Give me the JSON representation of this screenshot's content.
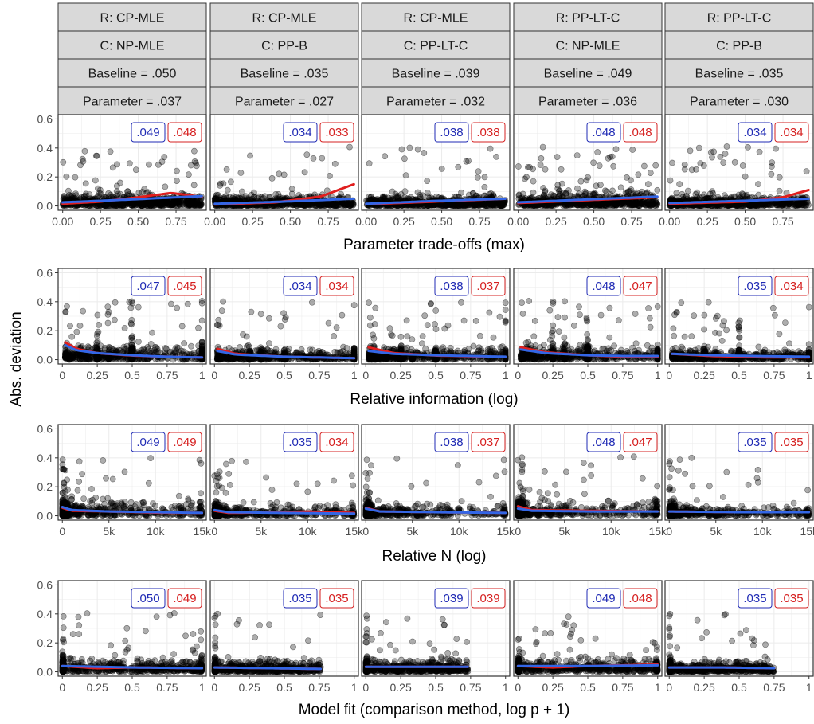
{
  "chart_data": {
    "type": "scatter",
    "y_axis_title": "Abs. deviation",
    "y_ticks": [
      "0.0",
      "0.2",
      "0.4",
      "0.6"
    ],
    "ylim": [
      0,
      0.6
    ],
    "colors": {
      "blue_line": "#3366e6",
      "red_line": "#e01e1e",
      "blue_label": "#1f2ab4",
      "red_label": "#d62020",
      "points": "#000000",
      "strip_fill": "#d9d9d9",
      "panel_border": "#333333",
      "grid": "#ebebeb"
    },
    "columns": [
      {
        "r": "R: CP-MLE",
        "c": "C: NP-MLE",
        "baseline": "Baseline = .050",
        "parameter": "Parameter = .037"
      },
      {
        "r": "R: CP-MLE",
        "c": "C: PP-B",
        "baseline": "Baseline = .035",
        "parameter": "Parameter = .027"
      },
      {
        "r": "R: CP-MLE",
        "c": "C: PP-LT-C",
        "baseline": "Baseline = .039",
        "parameter": "Parameter = .032"
      },
      {
        "r": "R: PP-LT-C",
        "c": "C: NP-MLE",
        "baseline": "Baseline = .049",
        "parameter": "Parameter = .036"
      },
      {
        "r": "R: PP-LT-C",
        "c": "C: PP-B",
        "baseline": "Baseline = .035",
        "parameter": "Parameter = .030"
      }
    ],
    "rows": [
      {
        "xlabel": "Parameter trade-offs (max)",
        "xlim": [
          -0.03,
          0.95
        ],
        "x_ticks": [
          {
            "v": 0,
            "t": "0.00"
          },
          {
            "v": 0.25,
            "t": "0.25"
          },
          {
            "v": 0.5,
            "t": "0.50"
          },
          {
            "v": 0.75,
            "t": "0.75"
          }
        ],
        "panels": [
          {
            "labels": [
              ".049",
              ".048"
            ],
            "xmax": 0.92,
            "dist": "uniform",
            "spread": 0.045,
            "blue": [
              [
                0,
                0.025
              ],
              [
                0.45,
                0.045
              ],
              [
                0.92,
                0.068
              ]
            ],
            "red": [
              [
                0,
                0.015
              ],
              [
                0.25,
                0.03
              ],
              [
                0.5,
                0.06
              ],
              [
                0.72,
                0.09
              ],
              [
                0.92,
                0.062
              ]
            ]
          },
          {
            "labels": [
              ".034",
              ".033"
            ],
            "xmax": 0.92,
            "dist": "skew",
            "spread": 0.035,
            "blue": [
              [
                0,
                0.015
              ],
              [
                0.45,
                0.03
              ],
              [
                0.92,
                0.05
              ]
            ],
            "red": [
              [
                0,
                0.01
              ],
              [
                0.4,
                0.025
              ],
              [
                0.7,
                0.065
              ],
              [
                0.92,
                0.15
              ]
            ]
          },
          {
            "labels": [
              ".038",
              ".038"
            ],
            "xmax": 0.92,
            "dist": "uniform",
            "spread": 0.035,
            "blue": [
              [
                0,
                0.015
              ],
              [
                0.45,
                0.035
              ],
              [
                0.92,
                0.05
              ]
            ],
            "red": [
              [
                0,
                0.012
              ],
              [
                0.45,
                0.03
              ],
              [
                0.92,
                0.05
              ]
            ]
          },
          {
            "labels": [
              ".048",
              ".048"
            ],
            "xmax": 0.92,
            "dist": "uniform",
            "spread": 0.045,
            "blue": [
              [
                0,
                0.025
              ],
              [
                0.45,
                0.045
              ],
              [
                0.92,
                0.065
              ]
            ],
            "red": [
              [
                0,
                0.02
              ],
              [
                0.45,
                0.04
              ],
              [
                0.92,
                0.06
              ]
            ]
          },
          {
            "labels": [
              ".034",
              ".034"
            ],
            "xmax": 0.92,
            "dist": "skew",
            "spread": 0.035,
            "blue": [
              [
                0,
                0.02
              ],
              [
                0.45,
                0.035
              ],
              [
                0.92,
                0.05
              ]
            ],
            "red": [
              [
                0,
                0.015
              ],
              [
                0.5,
                0.03
              ],
              [
                0.75,
                0.06
              ],
              [
                0.92,
                0.11
              ]
            ]
          }
        ]
      },
      {
        "xlabel": "Relative information (log)",
        "xlim": [
          -0.03,
          1.03
        ],
        "x_ticks": [
          {
            "v": 0,
            "t": "0"
          },
          {
            "v": 0.25,
            "t": "0.25"
          },
          {
            "v": 0.5,
            "t": "0.5"
          },
          {
            "v": 0.75,
            "t": "0.75"
          },
          {
            "v": 1,
            "t": "1"
          }
        ],
        "panels": [
          {
            "labels": [
              ".047",
              ".045"
            ],
            "xmax": 1,
            "dist": "logrel",
            "spread": 0.05,
            "blue": [
              [
                0.02,
                0.1
              ],
              [
                0.1,
                0.065
              ],
              [
                0.25,
                0.045
              ],
              [
                0.5,
                0.03
              ],
              [
                0.75,
                0.02
              ],
              [
                1,
                0.015
              ]
            ],
            "red": [
              [
                0.02,
                0.12
              ],
              [
                0.1,
                0.075
              ],
              [
                0.25,
                0.045
              ],
              [
                0.5,
                0.028
              ],
              [
                0.75,
                0.02
              ],
              [
                1,
                0.015
              ]
            ]
          },
          {
            "labels": [
              ".034",
              ".034"
            ],
            "xmax": 1,
            "dist": "logrel",
            "spread": 0.035,
            "blue": [
              [
                0.02,
                0.06
              ],
              [
                0.15,
                0.035
              ],
              [
                0.5,
                0.02
              ],
              [
                1,
                0.01
              ]
            ],
            "red": [
              [
                0.02,
                0.075
              ],
              [
                0.15,
                0.04
              ],
              [
                0.5,
                0.02
              ],
              [
                1,
                0.01
              ]
            ]
          },
          {
            "labels": [
              ".038",
              ".037"
            ],
            "xmax": 1,
            "dist": "logrel",
            "spread": 0.04,
            "blue": [
              [
                0.02,
                0.06
              ],
              [
                0.2,
                0.04
              ],
              [
                0.5,
                0.03
              ],
              [
                1,
                0.02
              ]
            ],
            "red": [
              [
                0.02,
                0.085
              ],
              [
                0.2,
                0.045
              ],
              [
                0.5,
                0.028
              ],
              [
                1,
                0.018
              ]
            ]
          },
          {
            "labels": [
              ".048",
              ".047"
            ],
            "xmax": 1,
            "dist": "logrel",
            "spread": 0.05,
            "blue": [
              [
                0.02,
                0.07
              ],
              [
                0.2,
                0.045
              ],
              [
                0.5,
                0.03
              ],
              [
                0.75,
                0.025
              ],
              [
                1,
                0.025
              ]
            ],
            "red": [
              [
                0.02,
                0.085
              ],
              [
                0.2,
                0.05
              ],
              [
                0.5,
                0.03
              ],
              [
                0.75,
                0.02
              ],
              [
                1,
                0.02
              ]
            ]
          },
          {
            "labels": [
              ".035",
              ".034"
            ],
            "xmax": 1,
            "dist": "logrel",
            "spread": 0.035,
            "blue": [
              [
                0.02,
                0.04
              ],
              [
                0.3,
                0.03
              ],
              [
                0.6,
                0.025
              ],
              [
                1,
                0.02
              ]
            ],
            "red": [
              [
                0.02,
                0.04
              ],
              [
                0.3,
                0.025
              ],
              [
                0.7,
                0.015
              ],
              [
                1,
                0.015
              ]
            ]
          }
        ]
      },
      {
        "xlabel": "Relative N (log)",
        "xlim": [
          -450,
          15450
        ],
        "x_ticks": [
          {
            "v": 0,
            "t": "0"
          },
          {
            "v": 5000,
            "t": "5k"
          },
          {
            "v": 10000,
            "t": "10k"
          },
          {
            "v": 15000,
            "t": "15k"
          }
        ],
        "panels": [
          {
            "labels": [
              ".049",
              ".049"
            ],
            "xmax": 15000,
            "dist": "relN",
            "spread": 0.05,
            "blue": [
              [
                0,
                0.06
              ],
              [
                1000,
                0.04
              ],
              [
                5000,
                0.03
              ],
              [
                10000,
                0.025
              ],
              [
                15000,
                0.02
              ]
            ],
            "red": [
              [
                0,
                0.055
              ],
              [
                1000,
                0.035
              ],
              [
                5000,
                0.03
              ],
              [
                10000,
                0.022
              ],
              [
                15000,
                0.02
              ]
            ]
          },
          {
            "labels": [
              ".035",
              ".034"
            ],
            "xmax": 15000,
            "dist": "relN",
            "spread": 0.035,
            "blue": [
              [
                0,
                0.04
              ],
              [
                1500,
                0.025
              ],
              [
                7500,
                0.02
              ],
              [
                15000,
                0.015
              ]
            ],
            "red": [
              [
                0,
                0.035
              ],
              [
                1500,
                0.02
              ],
              [
                7000,
                0.025
              ],
              [
                10000,
                0.03
              ],
              [
                15000,
                0.02
              ]
            ]
          },
          {
            "labels": [
              ".038",
              ".037"
            ],
            "xmax": 15000,
            "dist": "relN",
            "spread": 0.04,
            "blue": [
              [
                0,
                0.05
              ],
              [
                1500,
                0.03
              ],
              [
                7500,
                0.025
              ],
              [
                15000,
                0.02
              ]
            ],
            "red": [
              [
                0,
                0.055
              ],
              [
                1500,
                0.03
              ],
              [
                7500,
                0.025
              ],
              [
                15000,
                0.02
              ]
            ]
          },
          {
            "labels": [
              ".048",
              ".047"
            ],
            "xmax": 15000,
            "dist": "relN",
            "spread": 0.05,
            "blue": [
              [
                0,
                0.05
              ],
              [
                1500,
                0.035
              ],
              [
                7500,
                0.03
              ],
              [
                15000,
                0.03
              ]
            ],
            "red": [
              [
                0,
                0.065
              ],
              [
                1500,
                0.04
              ],
              [
                7500,
                0.035
              ],
              [
                15000,
                0.03
              ]
            ]
          },
          {
            "labels": [
              ".035",
              ".035"
            ],
            "xmax": 15000,
            "dist": "relN",
            "spread": 0.035,
            "blue": [
              [
                0,
                0.03
              ],
              [
                7500,
                0.025
              ],
              [
                15000,
                0.025
              ]
            ],
            "red": [
              [
                0,
                0.03
              ],
              [
                7500,
                0.025
              ],
              [
                15000,
                0.025
              ]
            ]
          }
        ]
      },
      {
        "xlabel": "Model fit (comparison method, log p + 1)",
        "xlim": [
          -0.03,
          1.03
        ],
        "x_ticks": [
          {
            "v": 0,
            "t": "0"
          },
          {
            "v": 0.25,
            "t": "0.25"
          },
          {
            "v": 0.5,
            "t": "0.5"
          },
          {
            "v": 0.75,
            "t": "0.75"
          },
          {
            "v": 1,
            "t": "1"
          }
        ],
        "panels": [
          {
            "labels": [
              ".050",
              ".049"
            ],
            "xmax": 1,
            "dist": "fit",
            "spread": 0.045,
            "blue": [
              [
                0,
                0.04
              ],
              [
                0.5,
                0.03
              ],
              [
                1,
                0.025
              ]
            ],
            "red": [
              [
                0,
                0.04
              ],
              [
                0.25,
                0.025
              ],
              [
                0.5,
                0.03
              ],
              [
                1,
                0.025
              ]
            ]
          },
          {
            "labels": [
              ".035",
              ".035"
            ],
            "xmax": 0.76,
            "dist": "fit",
            "spread": 0.035,
            "blue": [
              [
                0,
                0.03
              ],
              [
                0.4,
                0.025
              ],
              [
                0.76,
                0.02
              ]
            ],
            "red": [
              [
                0,
                0.03
              ],
              [
                0.4,
                0.025
              ],
              [
                0.76,
                0.02
              ]
            ]
          },
          {
            "labels": [
              ".039",
              ".039"
            ],
            "xmax": 0.73,
            "dist": "fit",
            "spread": 0.04,
            "blue": [
              [
                0,
                0.035
              ],
              [
                0.36,
                0.035
              ],
              [
                0.73,
                0.035
              ]
            ],
            "red": [
              [
                0,
                0.035
              ],
              [
                0.36,
                0.035
              ],
              [
                0.73,
                0.035
              ]
            ]
          },
          {
            "labels": [
              ".049",
              ".048"
            ],
            "xmax": 1,
            "dist": "fit",
            "spread": 0.045,
            "blue": [
              [
                0,
                0.04
              ],
              [
                0.5,
                0.04
              ],
              [
                1,
                0.045
              ]
            ],
            "red": [
              [
                0,
                0.04
              ],
              [
                0.25,
                0.03
              ],
              [
                0.5,
                0.04
              ],
              [
                1,
                0.05
              ]
            ]
          },
          {
            "labels": [
              ".035",
              ".035"
            ],
            "xmax": 0.75,
            "dist": "fit",
            "spread": 0.035,
            "blue": [
              [
                0,
                0.03
              ],
              [
                0.37,
                0.03
              ],
              [
                0.75,
                0.025
              ]
            ],
            "red": [
              [
                0,
                0.03
              ],
              [
                0.37,
                0.03
              ],
              [
                0.75,
                0.025
              ]
            ]
          }
        ]
      }
    ]
  }
}
